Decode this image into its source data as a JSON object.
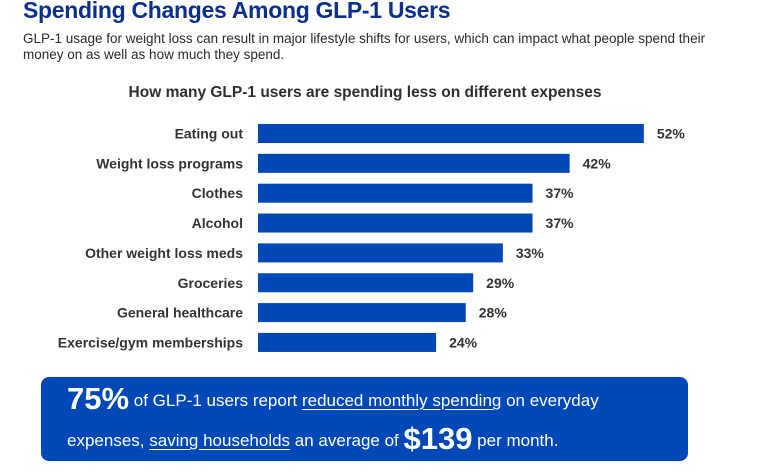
{
  "header": {
    "title": "Spending Changes Among GLP-1 Users",
    "subtitle": "GLP-1 usage for weight loss can result in major lifestyle shifts for users, which can impact what people spend their money on as well as how much they spend."
  },
  "colors": {
    "title": "#0a2f8c",
    "bar": "#0047b8",
    "callout_bg": "#0047b8",
    "label": "#333333"
  },
  "chart_data": {
    "type": "bar",
    "orientation": "horizontal",
    "title": "How many GLP-1 users are spending less on different expenses",
    "xlabel": "",
    "ylabel": "",
    "categories": [
      "Eating out",
      "Weight loss programs",
      "Clothes",
      "Alcohol",
      "Other weight loss meds",
      "Groceries",
      "General healthcare",
      "Exercise/gym memberships"
    ],
    "values": [
      52,
      42,
      37,
      37,
      33,
      29,
      28,
      24
    ],
    "value_labels": [
      "52%",
      "42%",
      "37%",
      "37%",
      "33%",
      "29%",
      "28%",
      "24%"
    ],
    "unit": "%",
    "xlim": [
      0,
      100
    ],
    "grid": false,
    "legend": "none"
  },
  "callout": {
    "stat": "75%",
    "text1": " of GLP-1 users report ",
    "link1": "reduced monthly spending",
    "text2": " on everyday",
    "text3": "expenses, ",
    "link2": "saving households",
    "text4": " an average of ",
    "amount": "$139",
    "text5": " per month."
  }
}
